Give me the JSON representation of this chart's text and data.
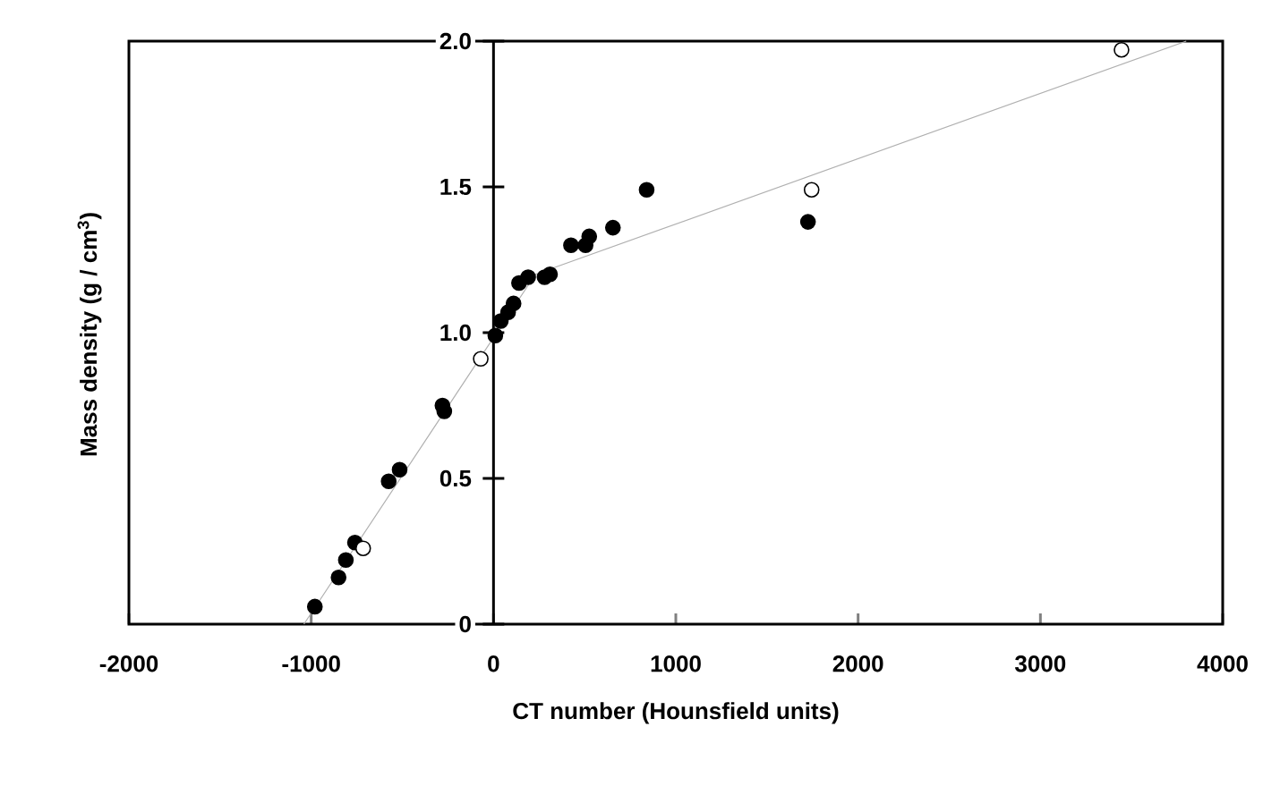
{
  "chart_data": {
    "type": "scatter",
    "xlabel": "CT number (Hounsfield units)",
    "ylabel": "Mass density (g / cm$^{3}$)",
    "xlim": [
      -2000,
      4000
    ],
    "ylim": [
      0,
      2.0
    ],
    "xticks": [
      -2000,
      -1000,
      0,
      1000,
      2000,
      3000,
      4000
    ],
    "yticks": [
      0,
      0.5,
      {
        "value": 1.0,
        "label": "1.0"
      },
      1.5,
      {
        "value": 2.0,
        "label": "2.0"
      }
    ],
    "series": [
      {
        "type": "line",
        "color": "#b0b0b0",
        "marker": "none",
        "x": [
          -1040,
          230,
          3800
        ],
        "values": [
          0,
          1.2,
          2.0
        ]
      },
      {
        "color": "#000000",
        "marker": "circle",
        "x": [
          -980,
          -850,
          -810,
          -760,
          -575,
          -515,
          -280,
          -270,
          10,
          40,
          80,
          110,
          140,
          190,
          280,
          310,
          425,
          505,
          525,
          655,
          840,
          1725
        ],
        "values": [
          0.06,
          0.16,
          0.22,
          0.28,
          0.49,
          0.53,
          0.75,
          0.73,
          0.99,
          1.04,
          1.07,
          1.1,
          1.17,
          1.19,
          1.19,
          1.2,
          1.3,
          1.3,
          1.33,
          1.36,
          1.49,
          1.38
        ]
      },
      {
        "color": "#ffffff",
        "marker": "circle",
        "x": [
          -715,
          -70,
          1745,
          3445
        ],
        "values": [
          0.26,
          0.91,
          1.49,
          1.97
        ]
      }
    ]
  }
}
